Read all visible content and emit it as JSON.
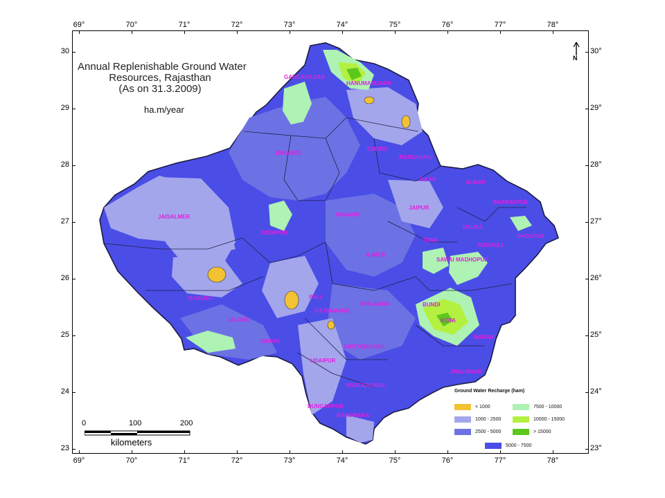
{
  "map": {
    "title_lines": [
      "Annual Replenishable Ground Water",
      "Resources, Rajasthan",
      "(As on 31.3.2009)"
    ],
    "unit": "ha.m/year",
    "north_arrow": "N",
    "scale": {
      "marks": [
        "0",
        "100",
        "200"
      ],
      "unit": "kilometers"
    },
    "longitudes": [
      "69°",
      "70°",
      "71°",
      "72°",
      "73°",
      "74°",
      "75°",
      "76°",
      "77°",
      "78°"
    ],
    "latitudes": [
      "30",
      "29",
      "28",
      "27",
      "26",
      "25",
      "24",
      "23"
    ],
    "latitudes_right": [
      "30°",
      "29°",
      "28°",
      "27°",
      "26°",
      "25°",
      "24°",
      "23°"
    ],
    "districts": [
      "GANGANAGAR",
      "HANUMANGARH",
      "BIKANER",
      "CHURU",
      "JHUNJHUNU",
      "SIKAR",
      "ALWAR",
      "BHARATPUR",
      "DHOLPUR",
      "KARAULI",
      "DAUSA",
      "JAIPUR",
      "NAGAUR",
      "JODHPUR",
      "JAISALMER",
      "BARMER",
      "JALORE",
      "SIROHI",
      "PALI",
      "AJMER",
      "TONK",
      "SAWAI MADHOPUR",
      "BUNDI",
      "KOTA",
      "BARAN",
      "JHALAWAR",
      "BHILWARA",
      "RAJSAMAND",
      "CHITTORGARH",
      "UDAIPUR",
      "DUNGARPUR",
      "BANSWARA",
      "PRATAPGARH"
    ],
    "legend": {
      "title": "Ground Water Recharge (ham)",
      "items": [
        {
          "label": "< 1000",
          "color": "#f2c233"
        },
        {
          "label": "7500 - 10000",
          "color": "#aef2b4"
        },
        {
          "label": "1000 - 2500",
          "color": "#a4a6ec"
        },
        {
          "label": "10000 - 15000",
          "color": "#b4f040"
        },
        {
          "label": "2500 - 5000",
          "color": "#6c72e4"
        },
        {
          "label": "> 15000",
          "color": "#5cc81c"
        },
        {
          "label": "5000 - 7500",
          "color": "#4a4ee6"
        }
      ]
    }
  }
}
